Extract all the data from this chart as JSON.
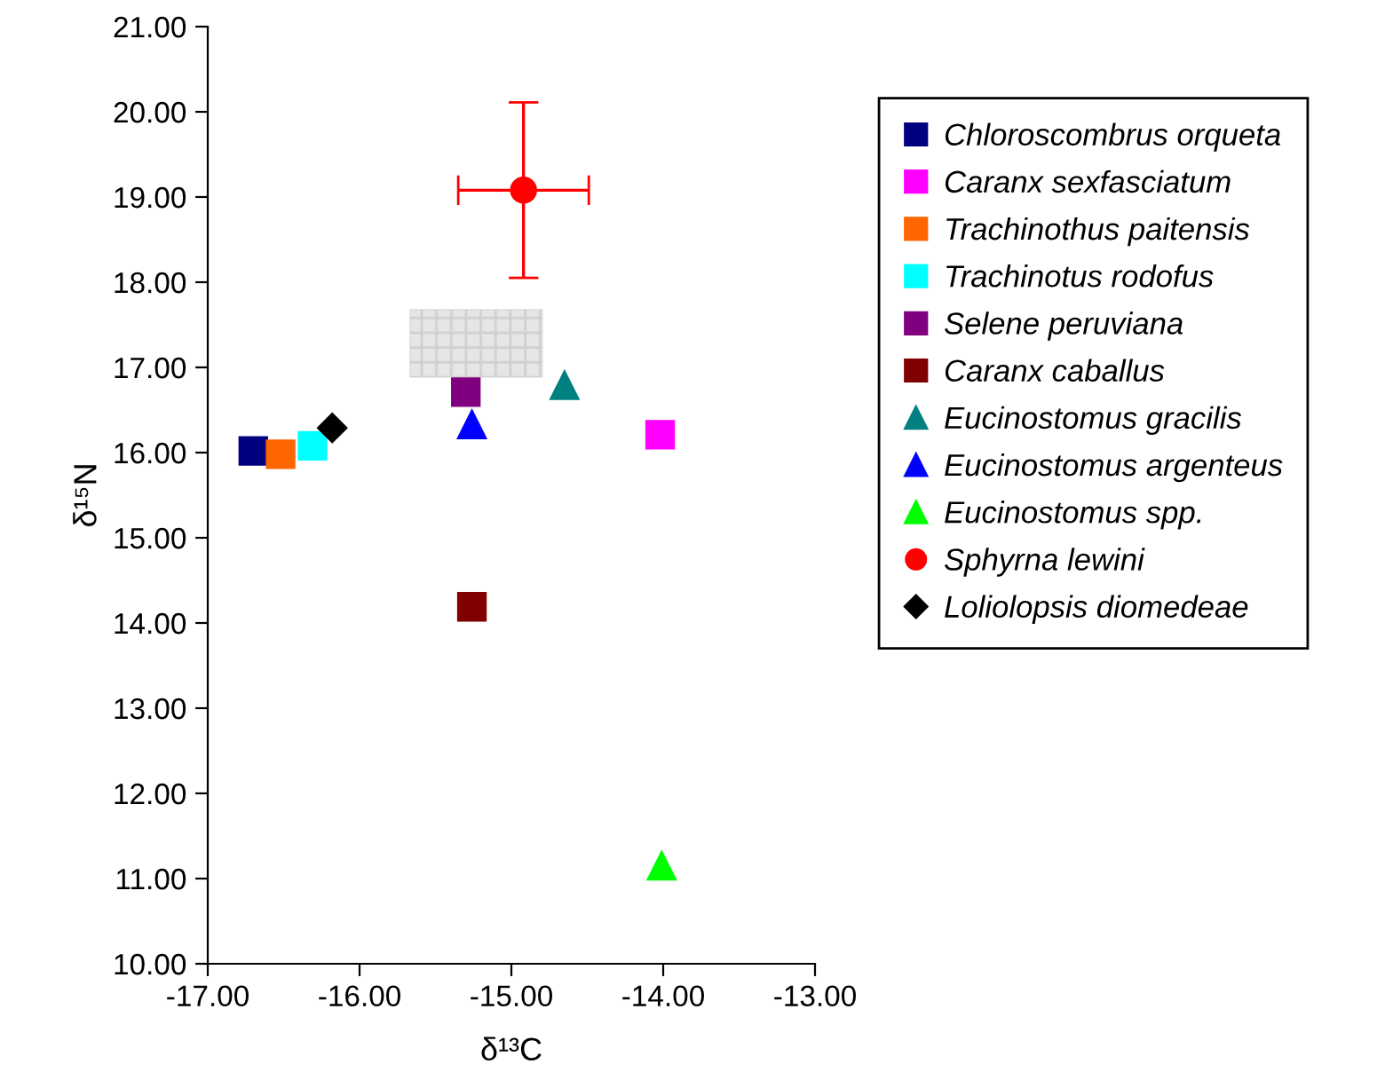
{
  "chart_data": {
    "type": "scatter",
    "xlabel": "δ¹³C",
    "ylabel": "δ¹⁵N",
    "xlim": [
      -17,
      -13
    ],
    "ylim": [
      10,
      21
    ],
    "xticks": [
      {
        "value": -17,
        "label": "-17.00"
      },
      {
        "value": -16,
        "label": "-16.00"
      },
      {
        "value": -15,
        "label": "-15.00"
      },
      {
        "value": -14,
        "label": "-14.00"
      },
      {
        "value": -13,
        "label": "-13.00"
      }
    ],
    "yticks": [
      {
        "value": 10,
        "label": "10.00"
      },
      {
        "value": 11,
        "label": "11.00"
      },
      {
        "value": 12,
        "label": "12.00"
      },
      {
        "value": 13,
        "label": "13.00"
      },
      {
        "value": 14,
        "label": "14.00"
      },
      {
        "value": 15,
        "label": "15.00"
      },
      {
        "value": 16,
        "label": "16.00"
      },
      {
        "value": 17,
        "label": "17.00"
      },
      {
        "value": 18,
        "label": "18.00"
      },
      {
        "value": 19,
        "label": "19.00"
      },
      {
        "value": 20,
        "label": "20.00"
      },
      {
        "value": 21,
        "label": "21.00"
      }
    ],
    "grid": false,
    "legend": "right",
    "series": [
      {
        "name": "Chloroscombrus orqueta",
        "color": "#000080",
        "marker": "square",
        "x": [
          -16.7
        ],
        "values": [
          16.02
        ]
      },
      {
        "name": "Caranx sexfasciatum",
        "color": "#ff00ff",
        "marker": "square",
        "x": [
          -14.02
        ],
        "values": [
          16.21
        ]
      },
      {
        "name": "Trachinothus paitensis",
        "color": "#ff6600",
        "marker": "square",
        "x": [
          -16.52
        ],
        "values": [
          15.98
        ]
      },
      {
        "name": "Trachinotus rodofus",
        "color": "#00ffff",
        "marker": "square",
        "x": [
          -16.31
        ],
        "values": [
          16.08
        ]
      },
      {
        "name": "Selene peruviana",
        "color": "#800080",
        "marker": "square",
        "x": [
          -15.3
        ],
        "values": [
          16.71
        ]
      },
      {
        "name": "Caranx caballus",
        "color": "#800000",
        "marker": "square",
        "x": [
          -15.26
        ],
        "values": [
          14.19
        ]
      },
      {
        "name": "Eucinostomus gracilis",
        "color": "#008080",
        "marker": "triangle",
        "x": [
          -14.65
        ],
        "values": [
          16.79
        ]
      },
      {
        "name": "Eucinostomus argenteus",
        "color": "#0000ff",
        "marker": "triangle",
        "x": [
          -15.26
        ],
        "values": [
          16.33
        ]
      },
      {
        "name": "Eucinostomus spp.",
        "color": "#00ff00",
        "marker": "triangle",
        "x": [
          -14.01
        ],
        "values": [
          11.15
        ]
      },
      {
        "name": "Sphyrna lewini",
        "color": "#ff0000",
        "marker": "circle",
        "x": [
          -14.92
        ],
        "values": [
          19.08
        ],
        "errors": [
          1.03
        ],
        "xerrors": [
          0.43
        ]
      },
      {
        "name": "Loliolopsis diomedeae",
        "color": "#000000",
        "marker": "diamond",
        "x": [
          -16.18
        ],
        "values": [
          16.29
        ]
      }
    ]
  }
}
